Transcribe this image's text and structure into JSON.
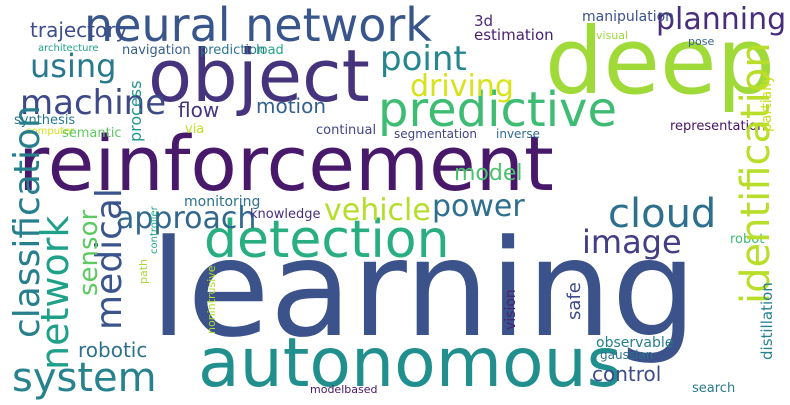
{
  "words": [
    {
      "text": "reinforcement",
      "color": "#48186a"
    },
    {
      "text": "learning",
      "color": "#3b528b"
    },
    {
      "text": "deep",
      "color": "#a0da39"
    },
    {
      "text": "object",
      "color": "#46337e"
    },
    {
      "text": "autonomous",
      "color": "#218f8d"
    },
    {
      "text": "detection",
      "color": "#28ae80"
    },
    {
      "text": "predictive",
      "color": "#3fbc73"
    },
    {
      "text": "neural network",
      "color": "#39568c"
    },
    {
      "text": "cloud",
      "color": "#2d708e"
    },
    {
      "text": "point",
      "color": "#24868e"
    },
    {
      "text": "planning",
      "color": "#472d7b"
    },
    {
      "text": "system",
      "color": "#26828e"
    },
    {
      "text": "machine",
      "color": "#3e4989"
    },
    {
      "text": "using",
      "color": "#29788e"
    },
    {
      "text": "image",
      "color": "#433e85"
    },
    {
      "text": "approach",
      "color": "#31688e"
    },
    {
      "text": "vehicle",
      "color": "#b5de2b"
    },
    {
      "text": "power",
      "color": "#2e6f8e"
    },
    {
      "text": "driving",
      "color": "#d8e219"
    },
    {
      "text": "motion",
      "color": "#35608d"
    },
    {
      "text": "model",
      "color": "#4ac16d"
    },
    {
      "text": "control",
      "color": "#3e4c8a"
    },
    {
      "text": "robotic",
      "color": "#2c728e"
    },
    {
      "text": "flow",
      "color": "#463480"
    },
    {
      "text": "trajectory",
      "color": "#3d4e8a"
    },
    {
      "text": "3d",
      "color": "#482878"
    },
    {
      "text": "manipulation",
      "color": "#3b528b"
    },
    {
      "text": "estimation",
      "color": "#481f70"
    },
    {
      "text": "navigation",
      "color": "#355e8d"
    },
    {
      "text": "prediction",
      "color": "#2b758e"
    },
    {
      "text": "load",
      "color": "#21a685"
    },
    {
      "text": "visual",
      "color": "#9bd93c"
    },
    {
      "text": "pose",
      "color": "#33638d"
    },
    {
      "text": "architecture",
      "color": "#20a386"
    },
    {
      "text": "synthesis",
      "color": "#2a788e"
    },
    {
      "text": "computer",
      "color": "#d0e11c"
    },
    {
      "text": "semantic",
      "color": "#5ec962"
    },
    {
      "text": "via",
      "color": "#c2df23"
    },
    {
      "text": "continual",
      "color": "#404588"
    },
    {
      "text": "segmentation",
      "color": "#414487"
    },
    {
      "text": "inverse",
      "color": "#30698e"
    },
    {
      "text": "representation",
      "color": "#471365"
    },
    {
      "text": "monitoring",
      "color": "#2c718e"
    },
    {
      "text": "knowledge",
      "color": "#46307e"
    },
    {
      "text": "robot",
      "color": "#3dbc74"
    },
    {
      "text": "observable",
      "color": "#277f8e"
    },
    {
      "text": "gaussian",
      "color": "#2c718e"
    },
    {
      "text": "search",
      "color": "#287c8e"
    },
    {
      "text": "modelbased",
      "color": "#481769"
    },
    {
      "text": "identification",
      "color": "#b8de29"
    },
    {
      "text": "network",
      "color": "#1fa088"
    },
    {
      "text": "classification",
      "color": "#277f8e"
    },
    {
      "text": "medical",
      "color": "#3a548c"
    },
    {
      "text": "sensor",
      "color": "#5ec962"
    },
    {
      "text": "process",
      "color": "#1f968b"
    },
    {
      "text": "partially",
      "color": "#cae11f"
    },
    {
      "text": "distillation",
      "color": "#26828e"
    },
    {
      "text": "safe",
      "color": "#3e4a89"
    },
    {
      "text": "vision",
      "color": "#482173"
    },
    {
      "text": "path",
      "color": "#a8db34"
    },
    {
      "text": "controller",
      "color": "#22a785"
    },
    {
      "text": "nonintrusive",
      "color": "#b2dd2d"
    }
  ]
}
